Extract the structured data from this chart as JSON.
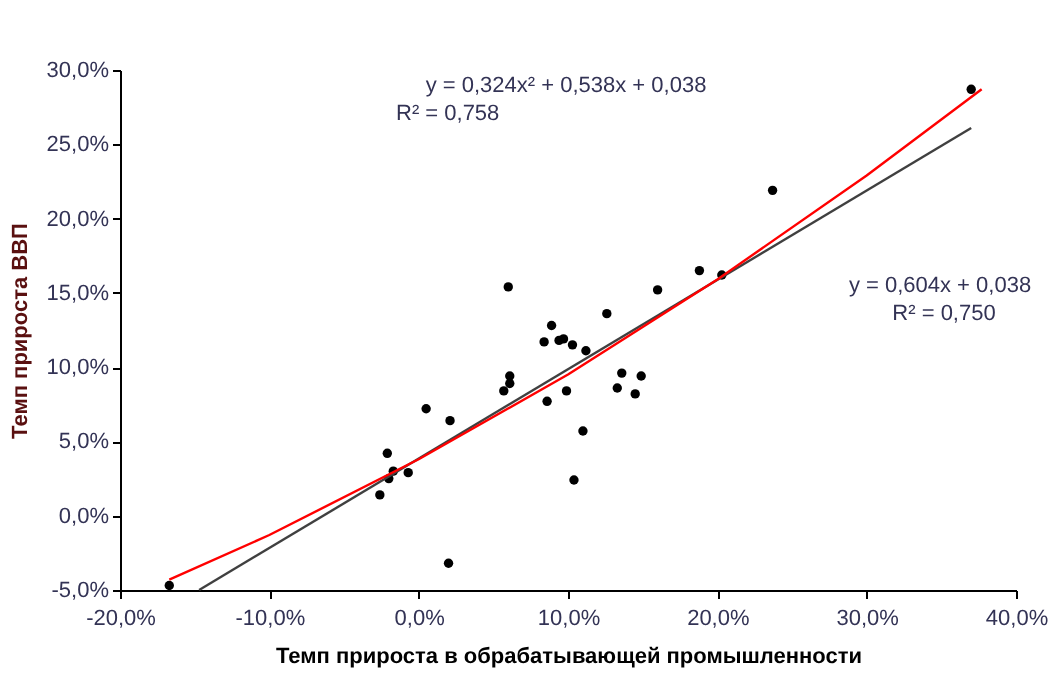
{
  "chart_data": {
    "type": "scatter",
    "xlabel": "Темп прироста в обрабатывающей промышленности",
    "ylabel": "Темп прироста ВВП",
    "marker": "circle",
    "grid": false,
    "xlim": [
      -0.2,
      0.4
    ],
    "ylim": [
      -0.05,
      0.3
    ],
    "xticks": [
      {
        "value": -0.2,
        "label": "-20,0%"
      },
      {
        "value": -0.1,
        "label": "-10,0%"
      },
      {
        "value": 0,
        "label": "0,0%"
      },
      {
        "value": 0.1,
        "label": "10,0%"
      },
      {
        "value": 0.2,
        "label": "20,0%"
      },
      {
        "value": 0.3,
        "label": "30,0%"
      },
      {
        "value": 0.4,
        "label": "40,0%"
      }
    ],
    "yticks": [
      {
        "value": -0.05,
        "label": "-5,0%"
      },
      {
        "value": 0,
        "label": "0,0%"
      },
      {
        "value": 0.05,
        "label": "5,0%"
      },
      {
        "value": 0.1,
        "label": "10,0%"
      },
      {
        "value": 0.15,
        "label": "15,0%"
      },
      {
        "value": 0.2,
        "label": "20,0%"
      },
      {
        "value": 0.25,
        "label": "25,0%"
      },
      {
        "value": 0.3,
        "label": "30,0%"
      }
    ],
    "series": [
      {
        "color": "#000000",
        "x": [
          -0.167,
          -0.021,
          -0.02,
          -0.017,
          -0.026,
          -0.007,
          0.005,
          0.021,
          0.02,
          0.06,
          0.089,
          0.084,
          0.094,
          0.097,
          0.103,
          0.112,
          0.126,
          0.16,
          0.188,
          0.203,
          0.061,
          0.061,
          0.057,
          0.086,
          0.099,
          0.136,
          0.149,
          0.133,
          0.145,
          0.11,
          0.104,
          0.237,
          0.37
        ],
        "values": [
          -0.047,
          0.042,
          0.025,
          0.03,
          0.014,
          0.029,
          0.072,
          0.064,
          -0.032,
          0.154,
          0.128,
          0.117,
          0.118,
          0.119,
          0.115,
          0.111,
          0.136,
          0.152,
          0.165,
          0.162,
          0.094,
          0.089,
          0.084,
          0.077,
          0.084,
          0.096,
          0.094,
          0.086,
          0.082,
          0.057,
          0.024,
          0.219,
          0.287
        ]
      },
      {
        "type": "line",
        "marker": "none",
        "color": "#404040",
        "x": [
          -0.147,
          0.37
        ],
        "values": [
          -0.05,
          0.261
        ]
      },
      {
        "type": "line",
        "marker": "none",
        "color": "#ff0000",
        "x": [
          -0.167,
          -0.1,
          0,
          0.1,
          0.2,
          0.3,
          0.377
        ],
        "values": [
          -0.043,
          -0.013,
          0.038,
          0.095,
          0.159,
          0.229,
          0.287
        ]
      }
    ],
    "annotations": [
      "y = 0,324x² + 0,538x + 0,038",
      "R² = 0,758",
      "y = 0,604x + 0,038",
      "R² = 0,750"
    ]
  }
}
